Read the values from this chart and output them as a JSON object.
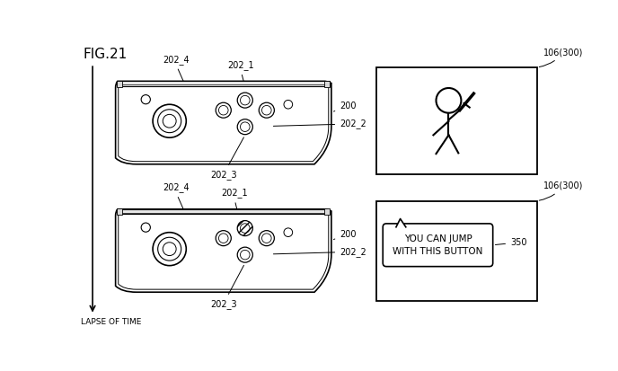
{
  "fig_label": "FIG.21",
  "bg_color": "#ffffff",
  "lapse_label": "LAPSE OF TIME",
  "line_color": "#000000",
  "fill_color": "#ffffff",
  "font_size_title": 11,
  "font_size_label": 7,
  "font_size_bubble": 7,
  "label_200": "200",
  "label_202_1": "202_1",
  "label_202_2": "202_2",
  "label_202_3": "202_3",
  "label_202_4": "202_4",
  "label_screen": "106(300)",
  "label_350": "350",
  "bubble_text": "YOU CAN JUMP\nWITH THIS BUTTON"
}
